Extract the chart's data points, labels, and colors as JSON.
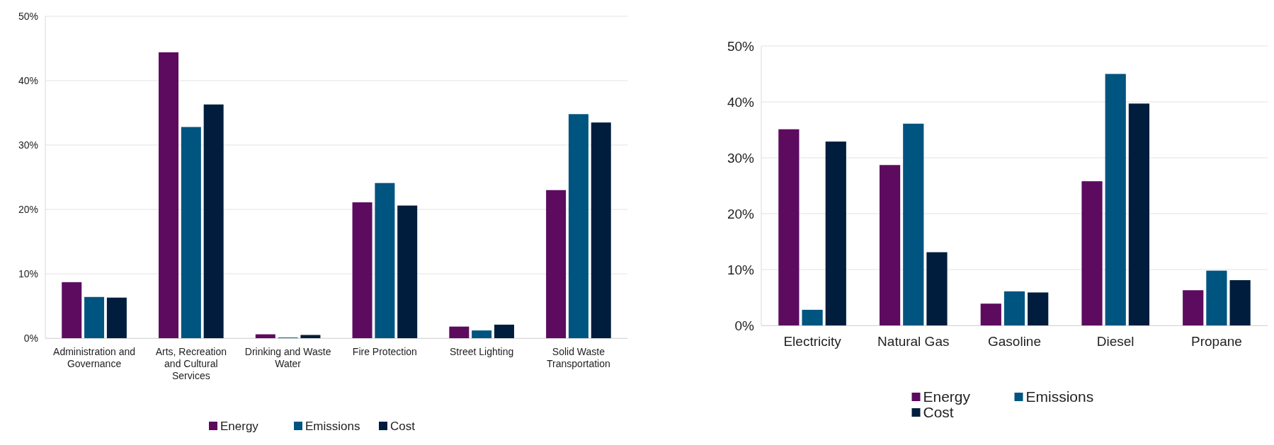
{
  "chart_data": [
    {
      "type": "bar",
      "categories": [
        "Administration and Governance",
        "Arts, Recreation and Cultural Services",
        "Drinking and Waste Water",
        "Fire Protection",
        "Street Lighting",
        "Solid Waste Transportation"
      ],
      "series": [
        {
          "name": "Energy",
          "color": "#5c0b5e",
          "values": [
            8.7,
            44.4,
            0.6,
            21.1,
            1.8,
            23.0
          ]
        },
        {
          "name": "Emissions",
          "color": "#005480",
          "values": [
            6.4,
            32.8,
            0.1,
            24.1,
            1.2,
            34.8
          ]
        },
        {
          "name": "Cost",
          "color": "#001d3d",
          "values": [
            6.3,
            36.3,
            0.5,
            20.6,
            2.1,
            33.5
          ]
        }
      ],
      "ylim": [
        0,
        50
      ],
      "yticks": [
        {
          "value": 0,
          "label": "0%"
        },
        {
          "value": 10,
          "label": "10%"
        },
        {
          "value": 20,
          "label": "20%"
        },
        {
          "value": 30,
          "label": "30%"
        },
        {
          "value": 40,
          "label": "40%"
        },
        {
          "value": 50,
          "label": "50%"
        }
      ],
      "grid": "y",
      "legend": "bottom"
    },
    {
      "type": "bar",
      "categories": [
        "Electricity",
        "Natural Gas",
        "Gasoline",
        "Diesel",
        "Propane"
      ],
      "series": [
        {
          "name": "Energy",
          "color": "#5c0b5e",
          "values": [
            35.1,
            28.7,
            3.9,
            25.8,
            6.3
          ]
        },
        {
          "name": "Emissions",
          "color": "#005480",
          "values": [
            2.8,
            36.1,
            6.1,
            45.0,
            9.8
          ]
        },
        {
          "name": "Cost",
          "color": "#001d3d",
          "values": [
            32.9,
            13.1,
            5.9,
            39.7,
            8.1
          ]
        }
      ],
      "ylim": [
        0,
        50
      ],
      "yticks": [
        {
          "value": 0,
          "label": "0%"
        },
        {
          "value": 10,
          "label": "10%"
        },
        {
          "value": 20,
          "label": "20%"
        },
        {
          "value": 30,
          "label": "30%"
        },
        {
          "value": 40,
          "label": "40%"
        },
        {
          "value": 50,
          "label": "50%"
        }
      ],
      "grid": "y",
      "legend": "bottom"
    }
  ]
}
